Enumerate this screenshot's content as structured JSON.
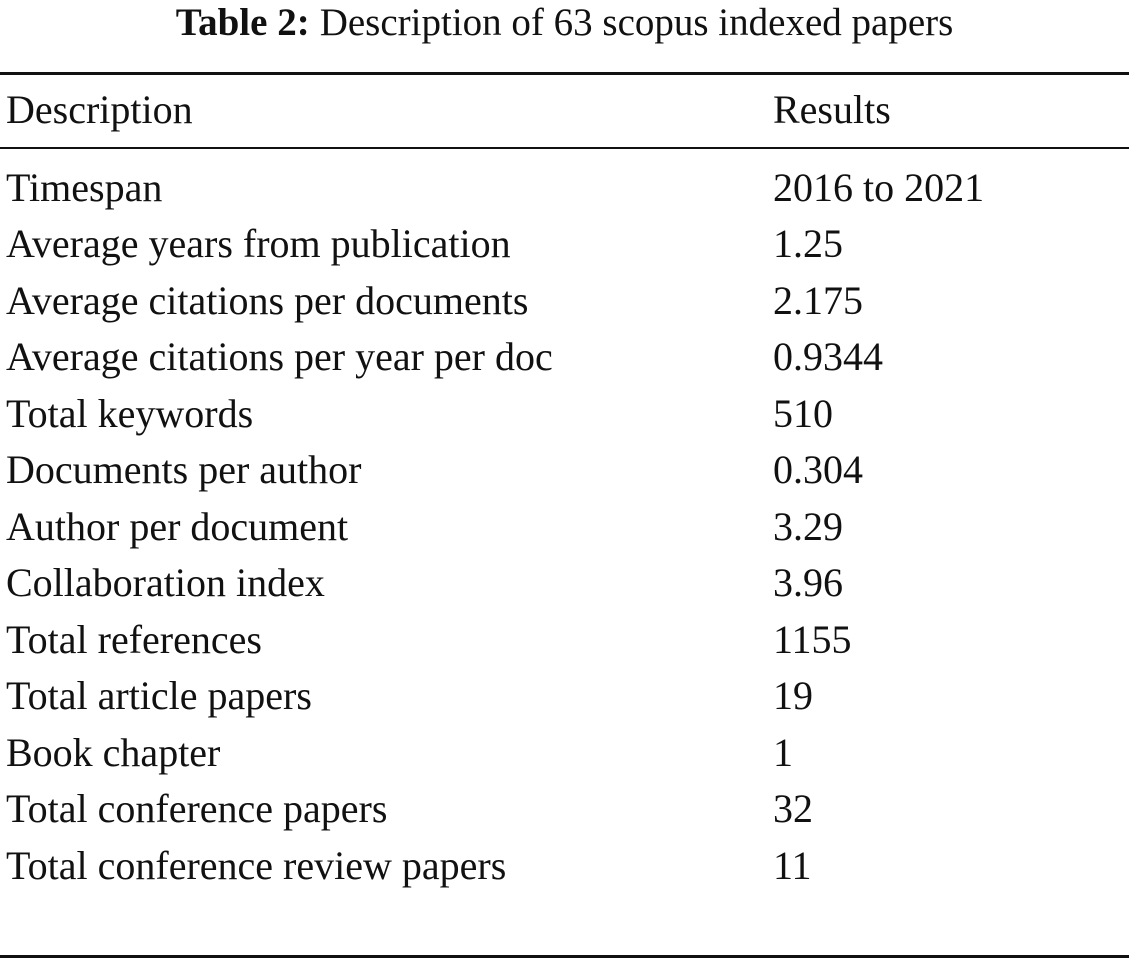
{
  "caption": {
    "label": "Table 2:",
    "text": "Description of 63 scopus indexed papers"
  },
  "table": {
    "header": [
      "Description",
      "Results"
    ],
    "rows": [
      [
        "Timespan",
        "2016 to 2021"
      ],
      [
        "Average years from publication",
        "1.25"
      ],
      [
        "Average citations per documents",
        "2.175"
      ],
      [
        "Average citations per year per doc",
        "0.9344"
      ],
      [
        "Total keywords",
        "510"
      ],
      [
        "Documents per author",
        "0.304"
      ],
      [
        "Author per document",
        "3.29"
      ],
      [
        "Collaboration index",
        "3.96"
      ],
      [
        "Total references",
        "1155"
      ],
      [
        "Total article papers",
        "19"
      ],
      [
        "Book chapter",
        "1"
      ],
      [
        "Total conference papers",
        "32"
      ],
      [
        "Total conference review papers",
        "11"
      ]
    ]
  }
}
